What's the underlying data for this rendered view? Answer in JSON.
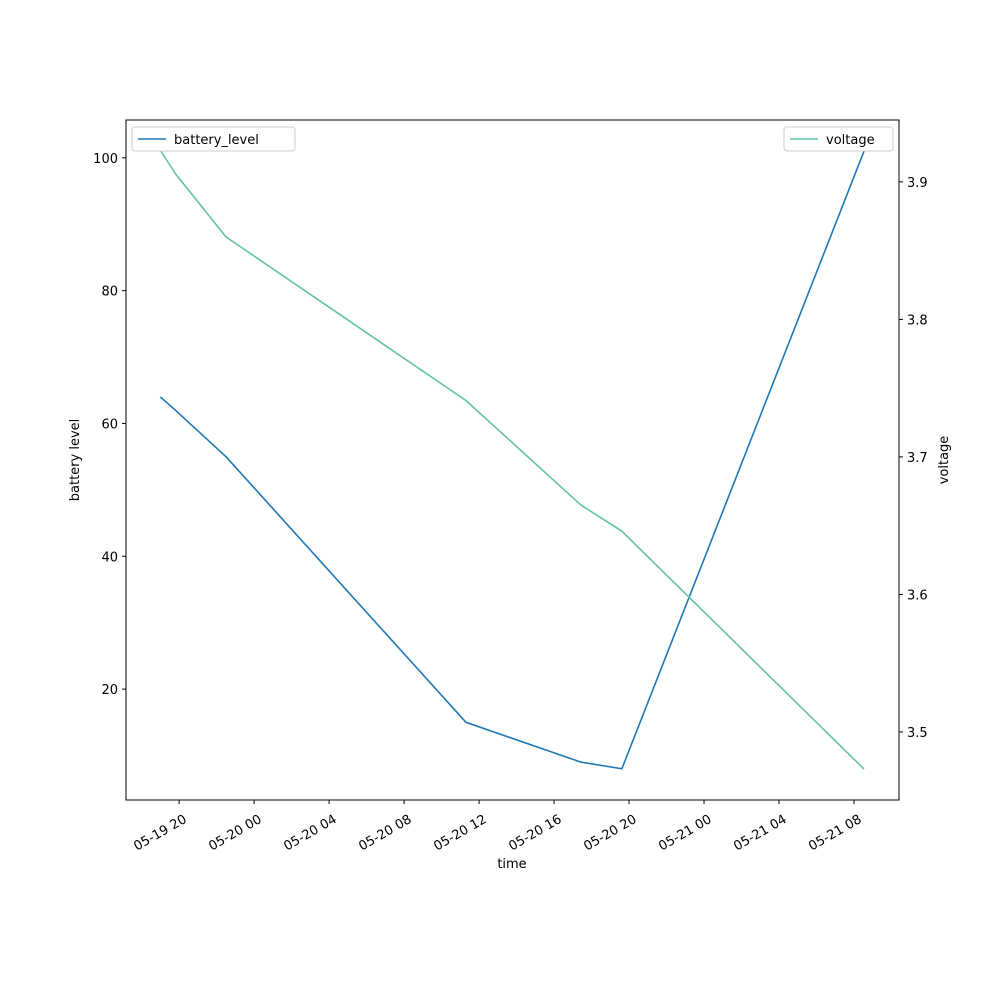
{
  "chart_data": {
    "type": "line",
    "x_label": "time",
    "y_label": "battery level",
    "y2_label": "voltage",
    "x": [
      "05-19 19:00",
      "05-19 19:48",
      "05-19 22:30",
      "05-20 11:18",
      "05-20 17:26",
      "05-20 19:37",
      "05-21 08:32"
    ],
    "series": [
      {
        "name": "battery_level",
        "color": "#1f77b4",
        "values": [
          64,
          62,
          55,
          15,
          9,
          8,
          101
        ]
      },
      {
        "name": "voltage",
        "color": "#66c2a5",
        "axis": "y2",
        "values": [
          3.923,
          3.906,
          3.86,
          3.741,
          3.665,
          3.646,
          3.473
        ]
      }
    ],
    "xlim": [
      "05-19 17:10",
      "05-21 10:24"
    ],
    "xticks": [
      {
        "value": "05-19 20:00",
        "label": "05-19 20"
      },
      {
        "value": "05-20 00:00",
        "label": "05-20 00"
      },
      {
        "value": "05-20 04:00",
        "label": "05-20 04"
      },
      {
        "value": "05-20 08:00",
        "label": "05-20 08"
      },
      {
        "value": "05-20 12:00",
        "label": "05-20 12"
      },
      {
        "value": "05-20 16:00",
        "label": "05-20 16"
      },
      {
        "value": "05-20 20:00",
        "label": "05-20 20"
      },
      {
        "value": "05-21 00:00",
        "label": "05-21 00"
      },
      {
        "value": "05-21 04:00",
        "label": "05-21 04"
      },
      {
        "value": "05-21 08:00",
        "label": "05-21 08"
      }
    ],
    "ylim": [
      3.3,
      105.7
    ],
    "yticks": [
      20,
      40,
      60,
      80,
      100
    ],
    "y2lim": [
      3.4505,
      3.945
    ],
    "y2ticks": [
      3.5,
      3.6,
      3.7,
      3.8,
      3.9
    ],
    "legend": "upper left",
    "legend2": "upper right"
  }
}
